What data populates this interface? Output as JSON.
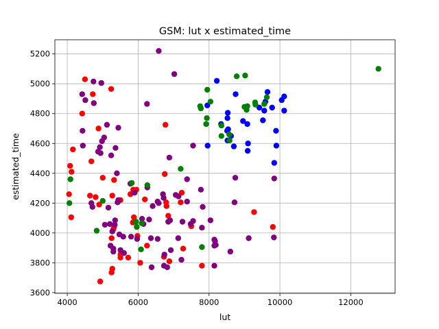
{
  "chart_data": {
    "type": "scatter",
    "title": "GSM: lut x estimated_time",
    "xlabel": "lut",
    "ylabel": "estimated_time",
    "xlim": [
      3650,
      13250
    ],
    "ylim": [
      3595,
      5295
    ],
    "xticks": [
      4000,
      6000,
      8000,
      10000,
      12000
    ],
    "yticks": [
      3600,
      3800,
      4000,
      4200,
      4400,
      4600,
      4800,
      5000,
      5200
    ],
    "grid": true,
    "series": [
      {
        "color": "#ff0000",
        "points": [
          [
            4500,
            5030
          ],
          [
            4720,
            4930
          ],
          [
            5240,
            4965
          ],
          [
            4420,
            4800
          ],
          [
            4880,
            4700
          ],
          [
            6770,
            4725
          ],
          [
            4160,
            4560
          ],
          [
            4680,
            4480
          ],
          [
            4080,
            4450
          ],
          [
            4120,
            4410
          ],
          [
            4050,
            4260
          ],
          [
            4640,
            4250
          ],
          [
            4900,
            4190
          ],
          [
            4800,
            4240
          ],
          [
            4110,
            4105
          ],
          [
            5000,
            4370
          ],
          [
            5320,
            4355
          ],
          [
            5270,
            4250
          ],
          [
            5500,
            4220
          ],
          [
            5780,
            4260
          ],
          [
            5860,
            4290
          ],
          [
            5950,
            4290
          ],
          [
            6190,
            4225
          ],
          [
            5880,
            4105
          ],
          [
            5850,
            4070
          ],
          [
            5980,
            3980
          ],
          [
            5250,
            3965
          ],
          [
            5320,
            4040
          ],
          [
            5300,
            4025
          ],
          [
            6750,
            4395
          ],
          [
            6800,
            4180
          ],
          [
            6850,
            4115
          ],
          [
            6790,
            4205
          ],
          [
            7230,
            4270
          ],
          [
            7200,
            4205
          ],
          [
            7500,
            4045
          ],
          [
            7270,
            3895
          ],
          [
            6250,
            3915
          ],
          [
            6060,
            3800
          ],
          [
            6730,
            3840
          ],
          [
            6880,
            3810
          ],
          [
            5720,
            3835
          ],
          [
            5500,
            3835
          ],
          [
            5500,
            3855
          ],
          [
            5270,
            3760
          ],
          [
            5250,
            3735
          ],
          [
            4930,
            3675
          ],
          [
            7800,
            3780
          ],
          [
            9270,
            4140
          ],
          [
            9800,
            4040
          ]
        ]
      },
      {
        "color": "#800080",
        "points": [
          [
            4740,
            5015
          ],
          [
            4960,
            5005
          ],
          [
            4420,
            4930
          ],
          [
            4510,
            4890
          ],
          [
            4750,
            4870
          ],
          [
            6580,
            5220
          ],
          [
            7020,
            5065
          ],
          [
            6250,
            4865
          ],
          [
            4430,
            4685
          ],
          [
            5440,
            4705
          ],
          [
            5040,
            4640
          ],
          [
            4980,
            4615
          ],
          [
            5120,
            4725
          ],
          [
            4440,
            4585
          ],
          [
            4920,
            4575
          ],
          [
            4870,
            4545
          ],
          [
            4940,
            4535
          ],
          [
            5360,
            4570
          ],
          [
            5240,
            4520
          ],
          [
            5400,
            4400
          ],
          [
            5780,
            4330
          ],
          [
            5900,
            4270
          ],
          [
            6880,
            4505
          ],
          [
            7550,
            4585
          ],
          [
            8740,
            4370
          ],
          [
            9840,
            4365
          ],
          [
            8720,
            4205
          ],
          [
            4680,
            4200
          ],
          [
            4710,
            4175
          ],
          [
            5160,
            4170
          ],
          [
            5420,
            4205
          ],
          [
            5440,
            4220
          ],
          [
            6260,
            4305
          ],
          [
            6410,
            4180
          ],
          [
            6580,
            4200
          ],
          [
            6550,
            4210
          ],
          [
            6720,
            4235
          ],
          [
            6700,
            4260
          ],
          [
            7060,
            4255
          ],
          [
            7140,
            4245
          ],
          [
            7380,
            4360
          ],
          [
            7380,
            4210
          ],
          [
            7770,
            4290
          ],
          [
            7820,
            4175
          ],
          [
            8040,
            4085
          ],
          [
            7550,
            4080
          ],
          [
            7250,
            4075
          ],
          [
            7480,
            4060
          ],
          [
            6900,
            4085
          ],
          [
            6850,
            4075
          ],
          [
            6310,
            4090
          ],
          [
            6110,
            4095
          ],
          [
            6150,
            4060
          ],
          [
            5350,
            4085
          ],
          [
            5340,
            4055
          ],
          [
            5060,
            4055
          ],
          [
            5200,
            4060
          ],
          [
            5270,
            4010
          ],
          [
            5470,
            3990
          ],
          [
            5800,
            3975
          ],
          [
            5580,
            3975
          ],
          [
            5970,
            3960
          ],
          [
            6360,
            3965
          ],
          [
            6550,
            3960
          ],
          [
            7130,
            3965
          ],
          [
            7800,
            4035
          ],
          [
            8150,
            3955
          ],
          [
            8170,
            3945
          ],
          [
            8190,
            3920
          ],
          [
            8150,
            3915
          ],
          [
            8600,
            3875
          ],
          [
            9120,
            3965
          ],
          [
            9830,
            3970
          ],
          [
            5220,
            3915
          ],
          [
            5300,
            3895
          ],
          [
            5500,
            3885
          ],
          [
            6920,
            3885
          ],
          [
            6740,
            3855
          ],
          [
            6730,
            3780
          ],
          [
            7220,
            3820
          ],
          [
            6380,
            3770
          ],
          [
            6820,
            3770
          ],
          [
            8150,
            3780
          ],
          [
            5300,
            3875
          ],
          [
            5600,
            3865
          ]
        ]
      },
      {
        "color": "#0000ff",
        "points": [
          [
            8220,
            5020
          ],
          [
            8750,
            4930
          ],
          [
            8530,
            4805
          ],
          [
            8520,
            4770
          ],
          [
            7950,
            4855
          ],
          [
            8540,
            4695
          ],
          [
            8340,
            4730
          ],
          [
            8510,
            4685
          ],
          [
            8620,
            4650
          ],
          [
            9080,
            4730
          ],
          [
            8960,
            4750
          ],
          [
            9420,
            4840
          ],
          [
            9560,
            4820
          ],
          [
            9520,
            4755
          ],
          [
            9650,
            4945
          ],
          [
            9590,
            4880
          ],
          [
            9780,
            4840
          ],
          [
            10050,
            4890
          ],
          [
            10120,
            4915
          ],
          [
            10120,
            4820
          ],
          [
            9890,
            4685
          ],
          [
            9900,
            4585
          ],
          [
            9840,
            4470
          ],
          [
            9100,
            4600
          ],
          [
            9090,
            4550
          ],
          [
            8700,
            4580
          ],
          [
            8520,
            4620
          ],
          [
            7960,
            4585
          ]
        ]
      },
      {
        "color": "#008000",
        "points": [
          [
            8780,
            5050
          ],
          [
            9020,
            5055
          ],
          [
            12780,
            5100
          ],
          [
            7950,
            4960
          ],
          [
            8040,
            4880
          ],
          [
            7750,
            4850
          ],
          [
            7770,
            4835
          ],
          [
            7920,
            4730
          ],
          [
            7940,
            4770
          ],
          [
            9000,
            4845
          ],
          [
            9060,
            4825
          ],
          [
            9080,
            4850
          ],
          [
            9300,
            4875
          ],
          [
            9310,
            4860
          ],
          [
            9560,
            4865
          ],
          [
            9630,
            4910
          ],
          [
            8350,
            4720
          ],
          [
            8350,
            4650
          ],
          [
            8570,
            4660
          ],
          [
            8580,
            4620
          ],
          [
            7200,
            4430
          ],
          [
            6260,
            4320
          ],
          [
            5820,
            4335
          ],
          [
            4090,
            4360
          ],
          [
            4060,
            4200
          ],
          [
            5000,
            4215
          ],
          [
            5940,
            4075
          ],
          [
            5960,
            4040
          ],
          [
            6100,
            4065
          ],
          [
            6080,
            3890
          ],
          [
            4830,
            4015
          ],
          [
            7800,
            3905
          ]
        ]
      }
    ]
  }
}
